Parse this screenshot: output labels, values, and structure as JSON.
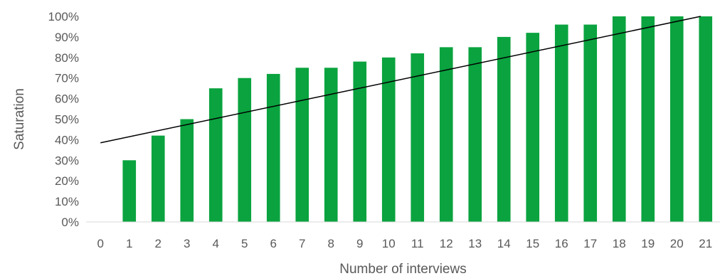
{
  "chart_data": {
    "type": "bar",
    "categories": [
      "0",
      "1",
      "2",
      "3",
      "4",
      "5",
      "6",
      "7",
      "8",
      "9",
      "10",
      "11",
      "12",
      "13",
      "14",
      "15",
      "16",
      "17",
      "18",
      "19",
      "20",
      "21"
    ],
    "values": [
      0,
      30,
      42,
      50,
      65,
      70,
      72,
      75,
      75,
      78,
      80,
      82,
      85,
      85,
      90,
      92,
      96,
      96,
      100,
      100,
      100,
      100
    ],
    "title": "",
    "xlabel": "Number of interviews",
    "ylabel": "Saturation",
    "ylim": [
      0,
      100
    ],
    "ytick_values": [
      0,
      10,
      20,
      30,
      40,
      50,
      60,
      70,
      80,
      90,
      100
    ],
    "ytick_labels": [
      "0%",
      "10%",
      "20%",
      "30%",
      "40%",
      "50%",
      "60%",
      "70%",
      "80%",
      "90%",
      "100%"
    ],
    "grid": false,
    "legend": "none",
    "bar_color": "#0aa33f",
    "trendline": {
      "type": "linear",
      "color": "#000000",
      "start_value": 38.5,
      "end_value": 100.5
    }
  }
}
